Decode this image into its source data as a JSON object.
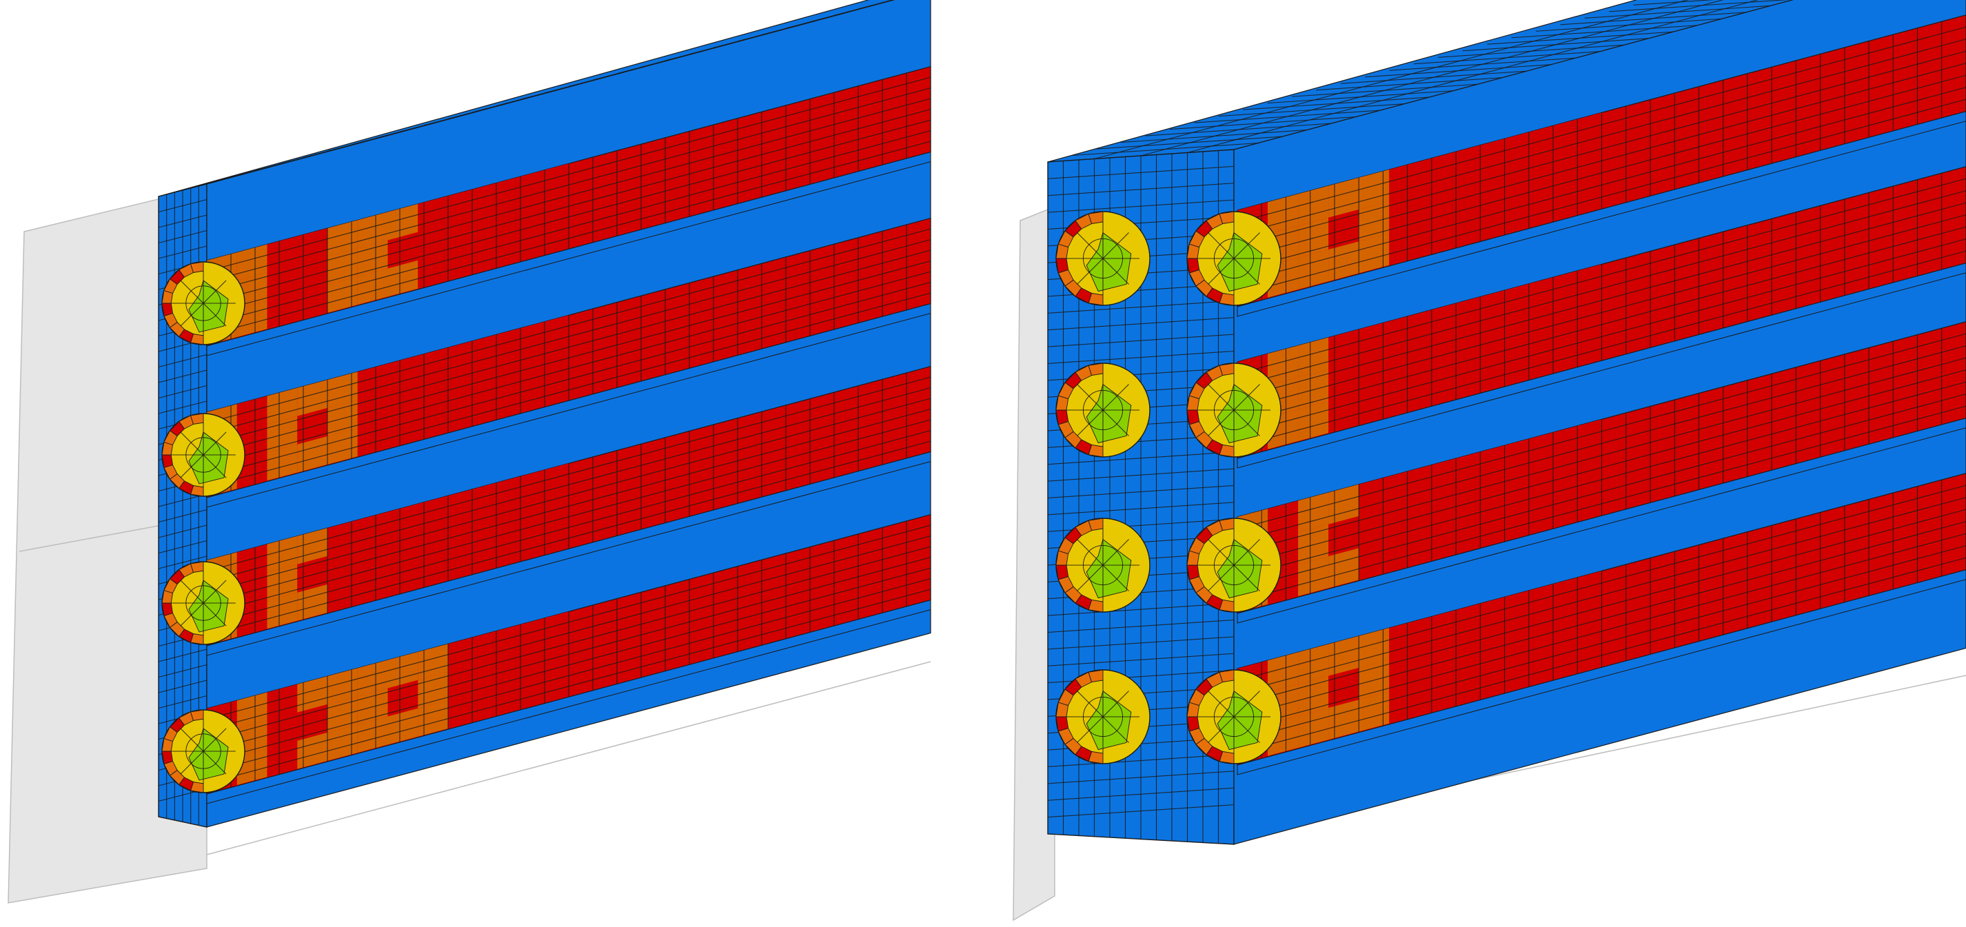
{
  "figure": {
    "panels": [
      {
        "name": "left-model",
        "columns": 1,
        "rods": [
          {
            "interior_bands": [
              "orange",
              "orange",
              "red",
              "red",
              "orange",
              "orange",
              "orange",
              "red",
              "red",
              "red",
              "red",
              "red"
            ]
          },
          {
            "interior_bands": [
              "orange",
              "red",
              "orange",
              "orange",
              "orange",
              "red",
              "red",
              "red",
              "red",
              "red",
              "red",
              "red"
            ]
          },
          {
            "interior_bands": [
              "orange",
              "red",
              "orange",
              "orange",
              "red",
              "red",
              "red",
              "red",
              "red",
              "red",
              "red",
              "red"
            ]
          },
          {
            "interior_bands": [
              "red",
              "orange",
              "red",
              "orange",
              "orange",
              "orange",
              "orange",
              "orange",
              "red",
              "red",
              "red",
              "red"
            ]
          }
        ]
      },
      {
        "name": "right-model",
        "columns": 2,
        "rods": [
          {
            "interior_bands": [
              "red",
              "orange",
              "orange",
              "orange",
              "orange",
              "red",
              "red",
              "red",
              "red",
              "red",
              "red",
              "red"
            ]
          },
          {
            "interior_bands": [
              "red",
              "orange",
              "orange",
              "red",
              "red",
              "red",
              "red",
              "red",
              "red",
              "red",
              "red",
              "red"
            ]
          },
          {
            "interior_bands": [
              "orange",
              "red",
              "orange",
              "orange",
              "red",
              "red",
              "red",
              "red",
              "red",
              "red",
              "red",
              "red"
            ]
          },
          {
            "interior_bands": [
              "red",
              "orange",
              "orange",
              "orange",
              "orange",
              "red",
              "red",
              "red",
              "red",
              "red",
              "red",
              "red"
            ]
          }
        ]
      }
    ],
    "colors": {
      "matrix": "#0c74e0",
      "red": "#d20000",
      "orange": "#d46400",
      "dark_orange": "#e8700a",
      "yellow": "#e8c800",
      "green": "#8ad000",
      "plane": "#e6e6e6",
      "grid": "#1a1a1a"
    }
  }
}
